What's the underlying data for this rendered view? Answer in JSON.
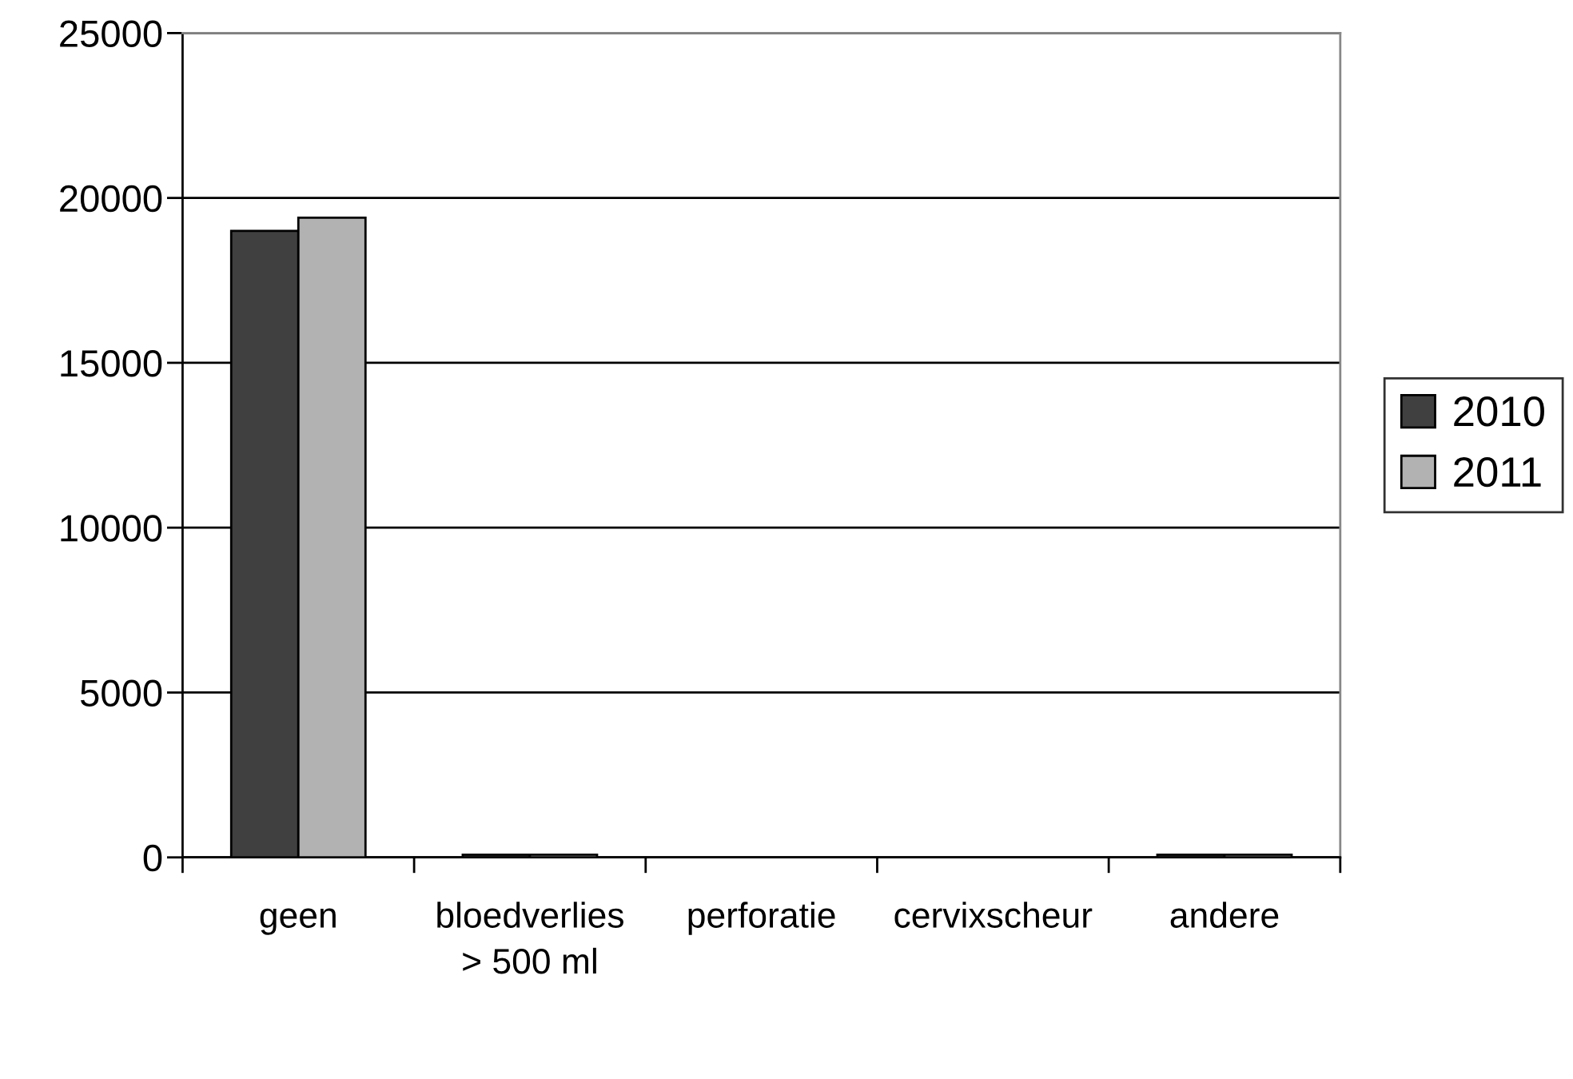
{
  "chart_data": {
    "type": "bar",
    "categories": [
      "geen",
      "bloedverlies\n> 500 ml",
      "perforatie",
      "cervixscheur",
      "andere"
    ],
    "series": [
      {
        "name": "2010",
        "color": "#404040",
        "values": [
          19000,
          80,
          null,
          null,
          80
        ]
      },
      {
        "name": "2011",
        "color": "#b2b2b2",
        "values": [
          19400,
          80,
          null,
          null,
          80
        ]
      }
    ],
    "ylim": [
      0,
      25000
    ],
    "yticks": [
      0,
      5000,
      10000,
      15000,
      20000,
      25000
    ],
    "grid": "y",
    "legend": "right"
  }
}
